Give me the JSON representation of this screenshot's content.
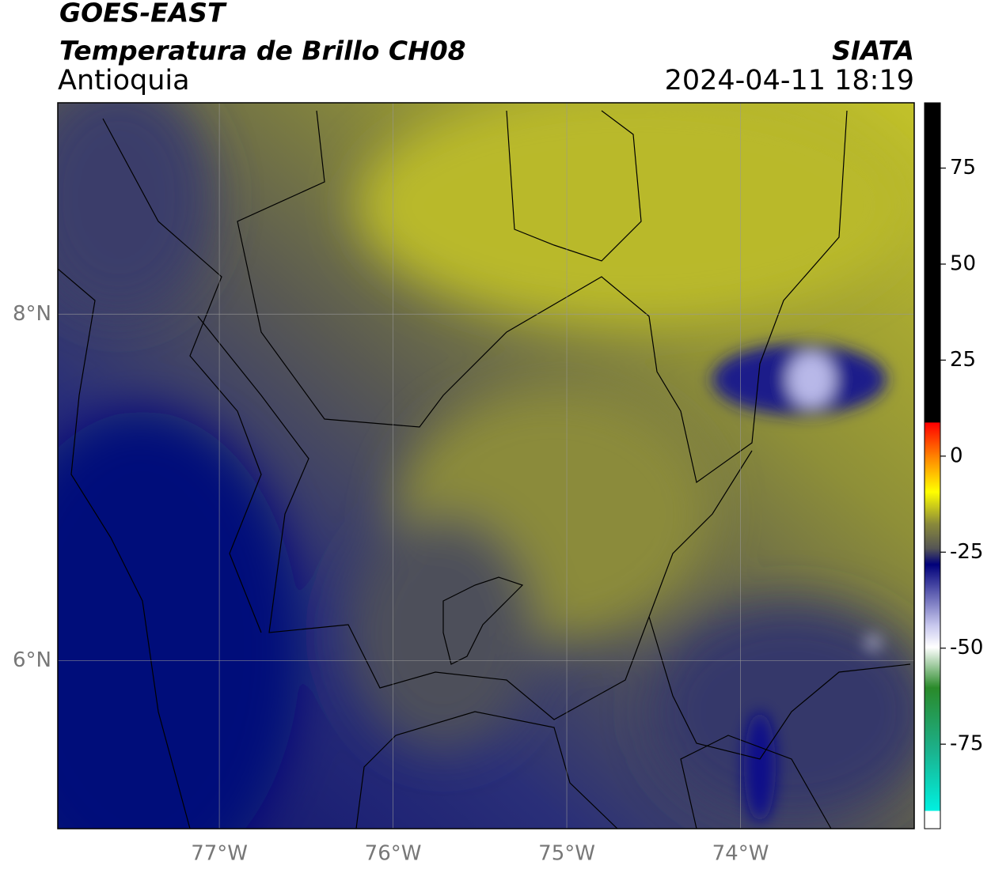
{
  "chart_data": {
    "type": "map",
    "title": "GOES-EAST",
    "subtitle": "Temperatura de Brillo CH08",
    "region": "Antioquia",
    "source": "SIATA",
    "timestamp": "2024-04-11 18:19",
    "xlim": [
      -77.93,
      -73.0
    ],
    "ylim": [
      5.03,
      9.22
    ],
    "xticks": [
      {
        "value": -77,
        "label": "77°W"
      },
      {
        "value": -76,
        "label": "76°W"
      },
      {
        "value": -75,
        "label": "75°W"
      },
      {
        "value": -74,
        "label": "74°W"
      }
    ],
    "yticks": [
      {
        "value": 8,
        "label": "8°N"
      },
      {
        "value": 6,
        "label": "6°N"
      }
    ],
    "colorbar": {
      "lim": [
        -97,
        92
      ],
      "ticks": [
        75,
        50,
        25,
        0,
        -25,
        -50,
        -75
      ]
    },
    "grid": true
  }
}
